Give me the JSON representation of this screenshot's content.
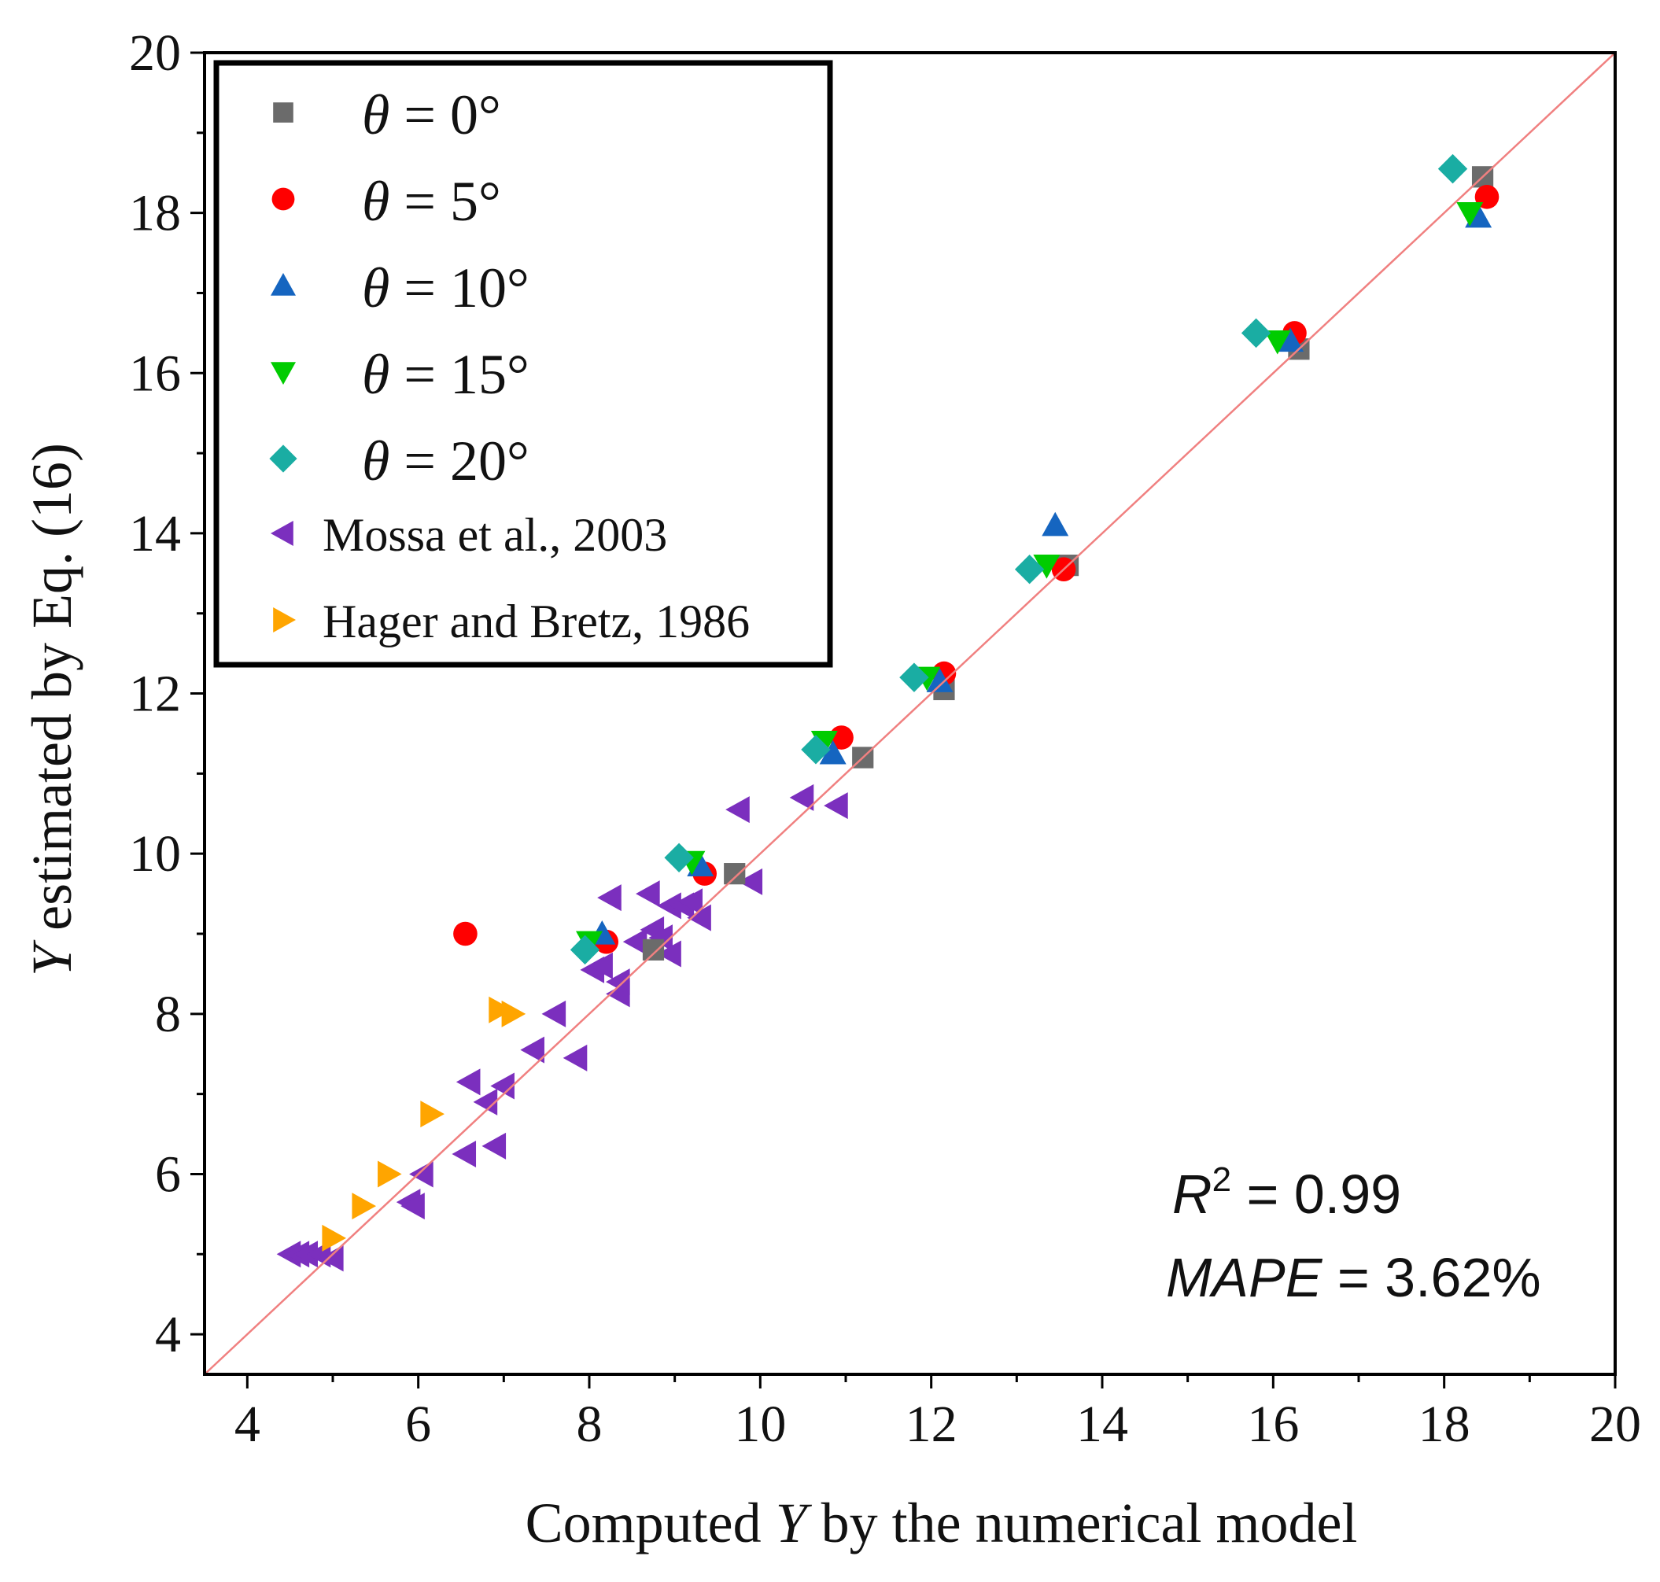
{
  "chart_data": {
    "type": "scatter",
    "xlabel_parts": [
      "Computed ",
      "Y",
      " by the numerical model"
    ],
    "ylabel_parts": [
      "Y",
      " estimated by Eq. (16)"
    ],
    "xlim": [
      3.5,
      20
    ],
    "ylim": [
      3.5,
      20
    ],
    "xticks": [
      4,
      6,
      8,
      10,
      12,
      14,
      16,
      18,
      20
    ],
    "yticks": [
      4,
      6,
      8,
      10,
      12,
      14,
      16,
      18,
      20
    ],
    "reference_line": {
      "name": "y = x",
      "color": "#f08080"
    },
    "annotations": {
      "r2_symbol": "R",
      "r2_sup": "2",
      "r2_value": " = 0.99",
      "mape_symbol": "MAPE",
      "mape_value": " = 3.62%"
    },
    "series": [
      {
        "name": "θ = 0°",
        "theta_prefix": "θ",
        "rest": " = 0°",
        "marker": "square",
        "color": "#6b6b6b",
        "points": [
          [
            18.45,
            18.45
          ],
          [
            16.3,
            16.3
          ],
          [
            13.6,
            13.6
          ],
          [
            12.15,
            12.05
          ],
          [
            11.2,
            11.2
          ],
          [
            9.7,
            9.75
          ],
          [
            8.75,
            8.8
          ]
        ]
      },
      {
        "name": "θ = 5°",
        "theta_prefix": "θ",
        "rest": " = 5°",
        "marker": "circle",
        "color": "#ff0000",
        "points": [
          [
            18.5,
            18.2
          ],
          [
            16.25,
            16.5
          ],
          [
            13.55,
            13.55
          ],
          [
            12.15,
            12.25
          ],
          [
            10.95,
            11.45
          ],
          [
            9.35,
            9.75
          ],
          [
            8.2,
            8.9
          ],
          [
            6.55,
            9.0
          ]
        ]
      },
      {
        "name": "θ = 10°",
        "theta_prefix": "θ",
        "rest": " = 10°",
        "marker": "triangle-up",
        "color": "#1565c0",
        "points": [
          [
            18.4,
            17.95
          ],
          [
            16.2,
            16.4
          ],
          [
            13.45,
            14.1
          ],
          [
            12.1,
            12.15
          ],
          [
            10.85,
            11.25
          ],
          [
            9.3,
            9.85
          ],
          [
            8.15,
            9.0
          ]
        ]
      },
      {
        "name": "θ = 15°",
        "theta_prefix": "θ",
        "rest": " = 15°",
        "marker": "triangle-down",
        "color": "#00cc00",
        "points": [
          [
            18.3,
            18.0
          ],
          [
            16.05,
            16.4
          ],
          [
            13.35,
            13.6
          ],
          [
            11.95,
            12.2
          ],
          [
            10.75,
            11.4
          ],
          [
            9.2,
            9.9
          ],
          [
            8.0,
            8.9
          ]
        ]
      },
      {
        "name": "θ = 20°",
        "theta_prefix": "θ",
        "rest": " = 20°",
        "marker": "diamond",
        "color": "#1aada3",
        "points": [
          [
            18.1,
            18.55
          ],
          [
            15.8,
            16.5
          ],
          [
            13.15,
            13.55
          ],
          [
            11.8,
            12.2
          ],
          [
            10.65,
            11.3
          ],
          [
            9.05,
            9.95
          ],
          [
            7.95,
            8.8
          ]
        ]
      },
      {
        "name": "Mossa et al., 2003",
        "marker": "triangle-left",
        "color": "#7b2fbe",
        "points": [
          [
            4.5,
            5.0
          ],
          [
            4.6,
            5.0
          ],
          [
            4.7,
            5.0
          ],
          [
            4.85,
            5.0
          ],
          [
            5.0,
            4.95
          ],
          [
            5.9,
            5.65
          ],
          [
            5.95,
            5.6
          ],
          [
            6.05,
            6.0
          ],
          [
            6.55,
            6.25
          ],
          [
            6.6,
            7.15
          ],
          [
            6.8,
            6.9
          ],
          [
            6.9,
            6.35
          ],
          [
            7.0,
            7.1
          ],
          [
            7.35,
            7.55
          ],
          [
            7.6,
            8.0
          ],
          [
            7.85,
            7.45
          ],
          [
            8.05,
            8.55
          ],
          [
            8.15,
            8.6
          ],
          [
            8.25,
            9.45
          ],
          [
            8.35,
            8.25
          ],
          [
            8.35,
            8.4
          ],
          [
            8.55,
            8.9
          ],
          [
            8.7,
            9.5
          ],
          [
            8.75,
            9.05
          ],
          [
            8.85,
            8.95
          ],
          [
            8.95,
            9.35
          ],
          [
            8.95,
            8.75
          ],
          [
            9.1,
            9.35
          ],
          [
            9.2,
            9.4
          ],
          [
            9.3,
            9.2
          ],
          [
            9.75,
            10.55
          ],
          [
            9.9,
            9.65
          ],
          [
            10.5,
            10.7
          ],
          [
            10.9,
            10.6
          ]
        ]
      },
      {
        "name": "Hager and Bretz, 1986",
        "marker": "triangle-right",
        "color": "#ffa500",
        "points": [
          [
            5.0,
            5.2
          ],
          [
            5.35,
            5.6
          ],
          [
            5.65,
            6.0
          ],
          [
            6.15,
            6.75
          ],
          [
            6.95,
            8.05
          ],
          [
            7.1,
            8.0
          ]
        ]
      }
    ]
  }
}
